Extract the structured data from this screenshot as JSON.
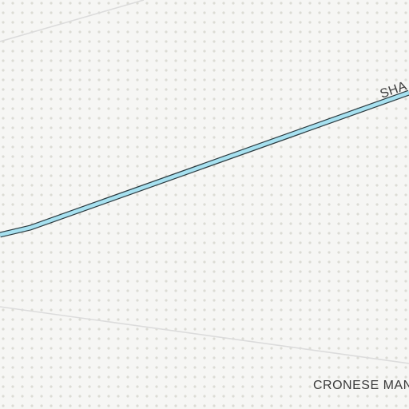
{
  "map": {
    "background_color": "#f6f6f4",
    "dot_color": "#dcdcd4",
    "minor_road_color": "#dcdcdc",
    "waterway_fill_color": "#a7e1f0",
    "waterway_outline_color": "#2b3a3f",
    "label_color": "#3c3c3c"
  },
  "labels": {
    "waterway_name": "SHA",
    "area_name": "CRONESE MAN"
  }
}
